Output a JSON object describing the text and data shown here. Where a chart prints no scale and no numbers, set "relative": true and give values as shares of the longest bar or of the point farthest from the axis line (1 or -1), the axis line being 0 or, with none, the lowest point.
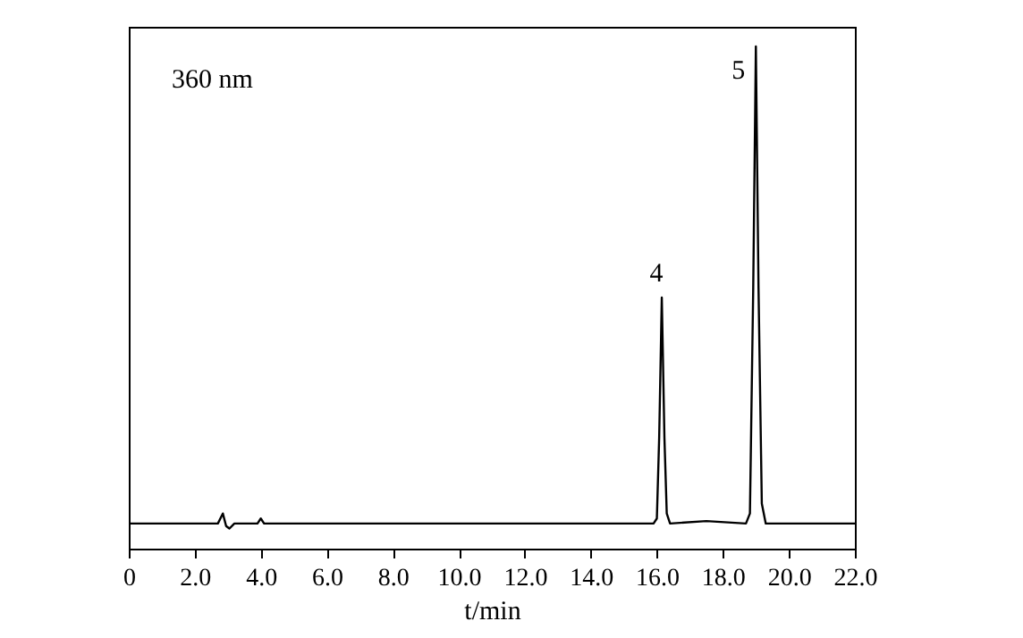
{
  "chart_data": {
    "type": "line",
    "relative": true,
    "xlabel": "t/min",
    "x": [
      0,
      1.0,
      2.7,
      2.85,
      2.95,
      3.05,
      3.2,
      3.9,
      4.0,
      4.1,
      8,
      12,
      15.9,
      16.0,
      16.07,
      16.15,
      16.23,
      16.3,
      16.4,
      17.5,
      18.7,
      18.82,
      18.92,
      19.0,
      19.08,
      19.18,
      19.3,
      22
    ],
    "series": [
      {
        "color": "#000000",
        "values": [
          0.05,
          0.05,
          0.05,
          0.07,
          0.045,
          0.04,
          0.05,
          0.05,
          0.06,
          0.05,
          0.05,
          0.05,
          0.05,
          0.06,
          0.22,
          0.5,
          0.22,
          0.07,
          0.05,
          0.055,
          0.05,
          0.07,
          0.52,
          1.0,
          0.52,
          0.09,
          0.05,
          0.05
        ]
      }
    ],
    "xlim": [
      0,
      22
    ],
    "xticks": [
      0,
      {
        "value": 2,
        "label": "2.0"
      },
      {
        "value": 4,
        "label": "4.0"
      },
      {
        "value": 6,
        "label": "6.0"
      },
      {
        "value": 8,
        "label": "8.0"
      },
      {
        "value": 10,
        "label": "10.0"
      },
      {
        "value": 12,
        "label": "12.0"
      },
      {
        "value": 14,
        "label": "14.0"
      },
      {
        "value": 16,
        "label": "16.0"
      },
      {
        "value": 18,
        "label": "18.0"
      },
      {
        "value": 20,
        "label": "20.0"
      },
      {
        "value": 22,
        "label": "22.0"
      }
    ],
    "annotations": [
      "360 nm",
      {
        "text": "4",
        "x": 16.15,
        "y": 0.5
      },
      {
        "text": "5",
        "x": 19.0,
        "y": 1.0
      }
    ],
    "grid": false,
    "marker": "none",
    "line_style": "solid"
  }
}
